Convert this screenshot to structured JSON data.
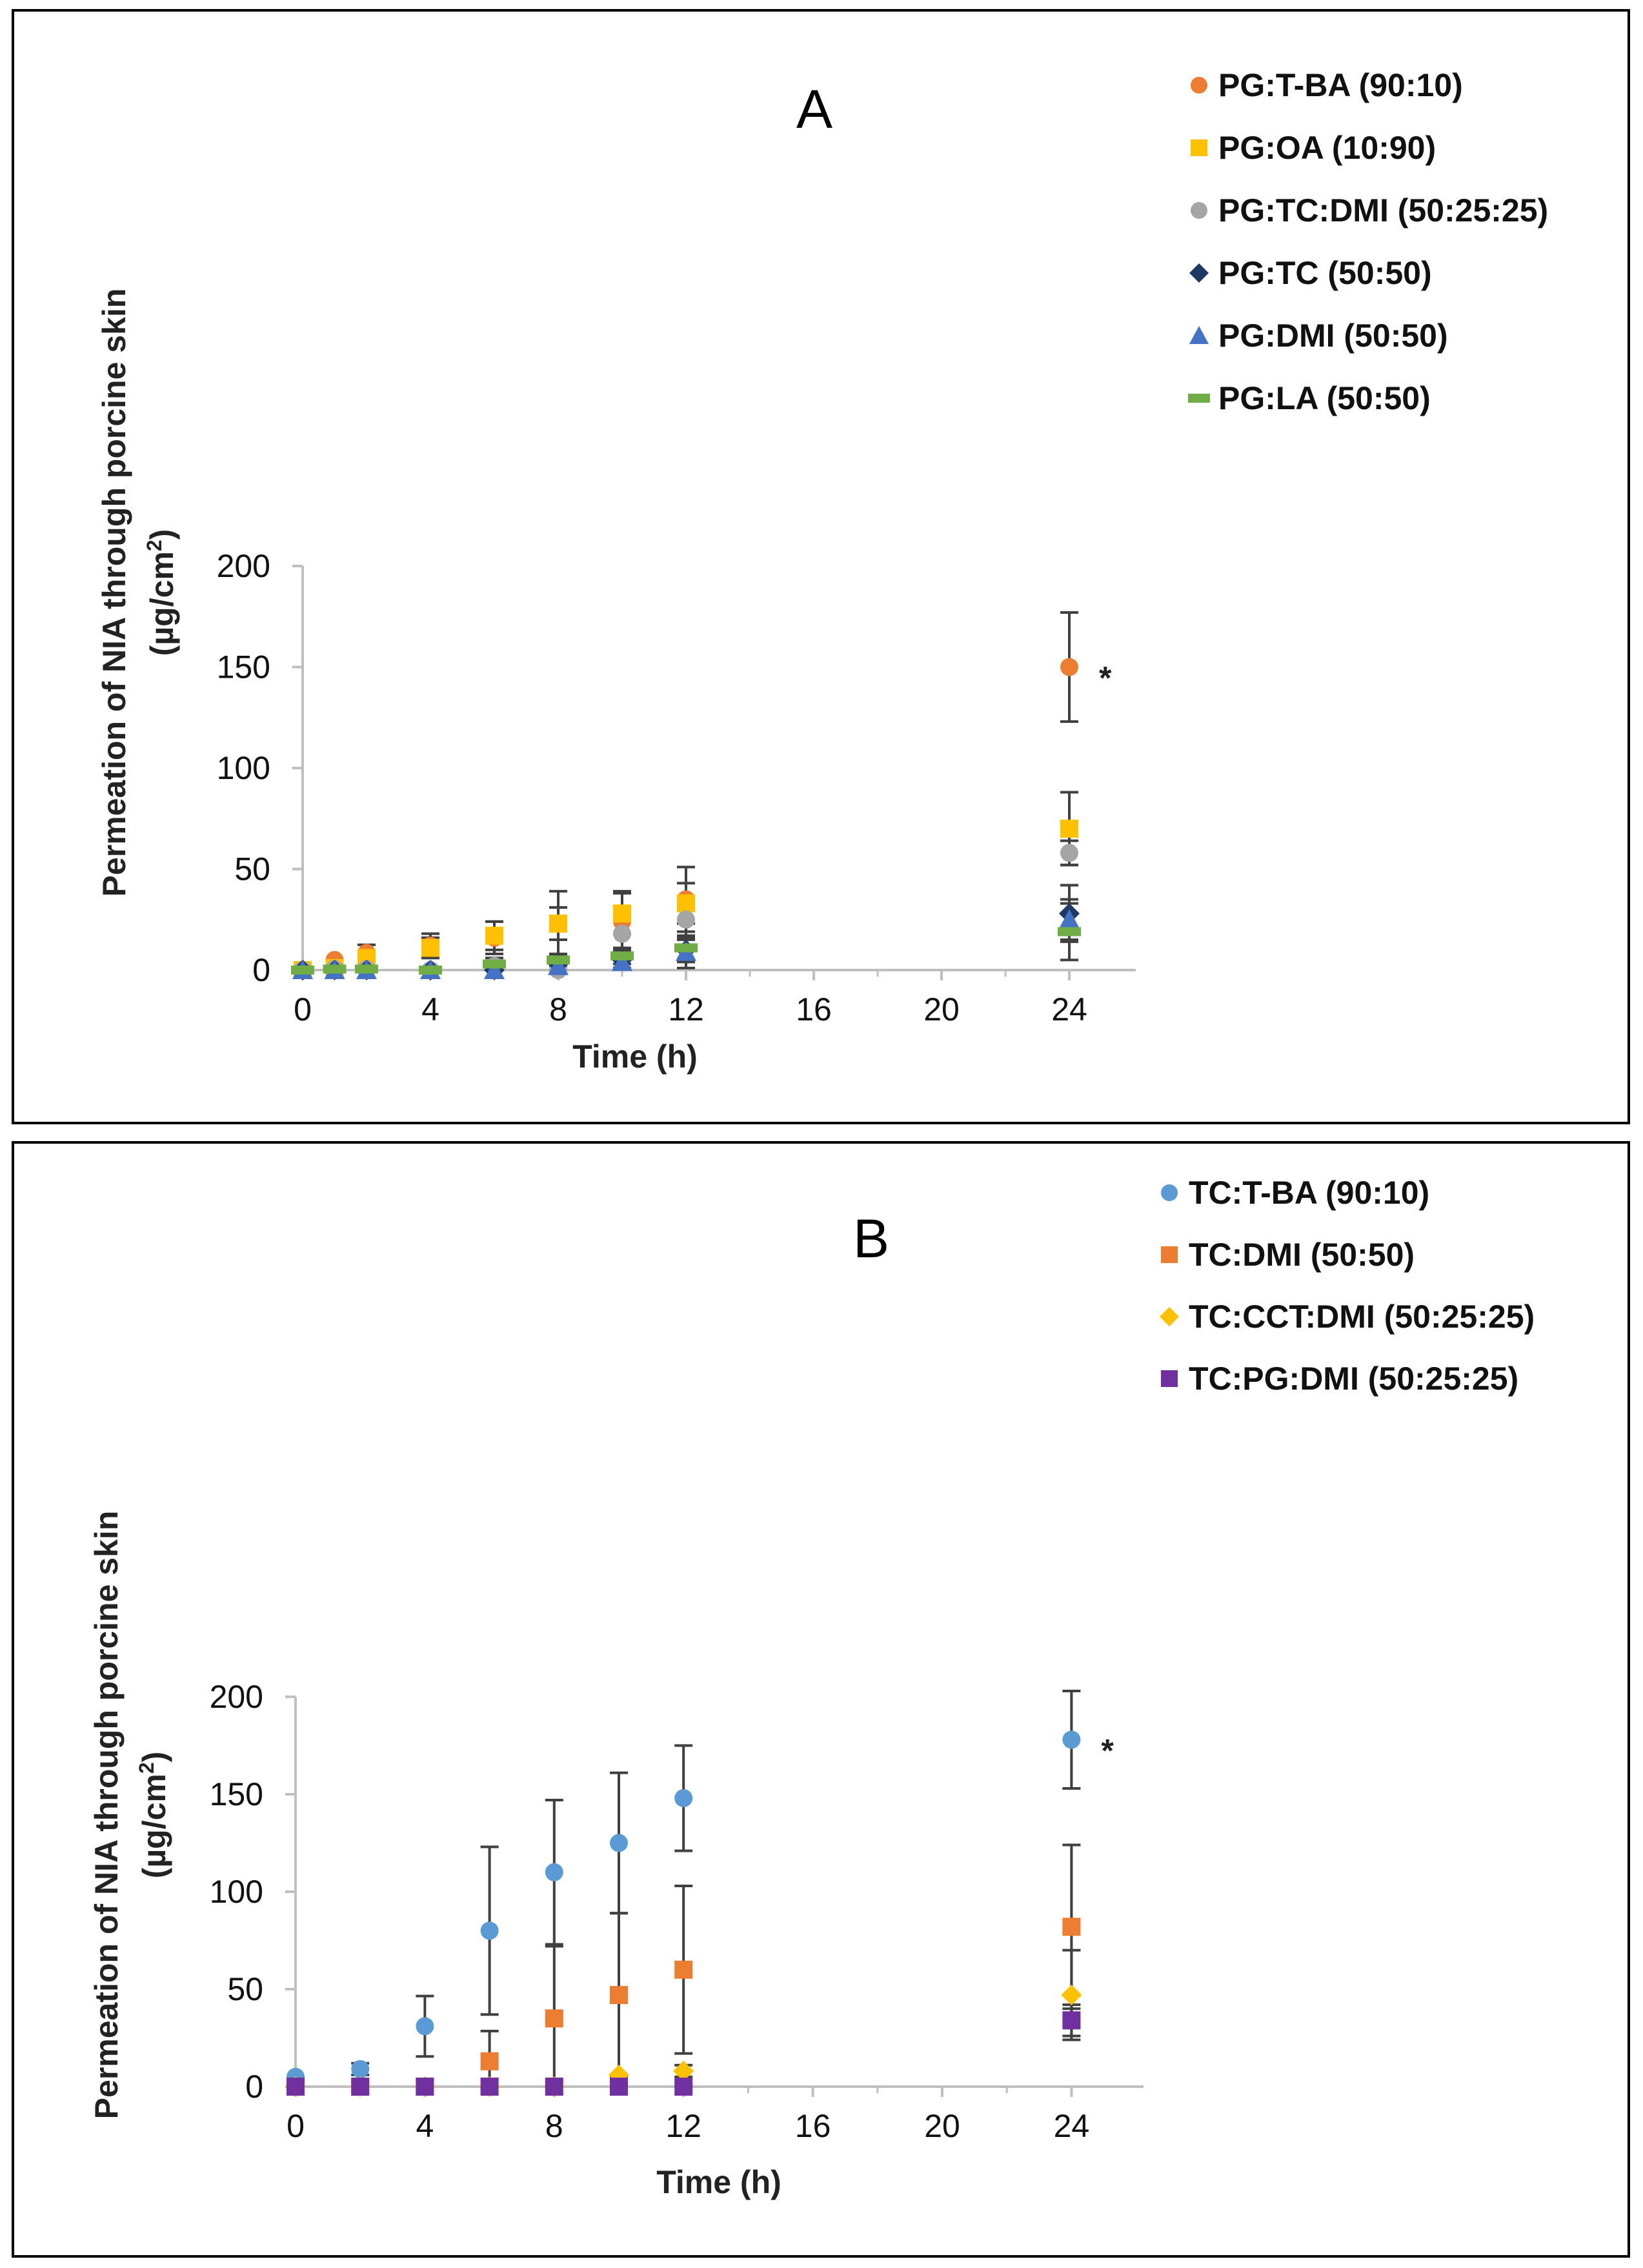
{
  "chart_data": [
    {
      "id": "A",
      "type": "scatter",
      "title": "A",
      "xlabel": "Time (h)",
      "ylabel_line1": "Permeation of NIA through porcine skin",
      "ylabel_unit": "(µg/cm",
      "ylabel_sup": "2",
      "ylabel_close": ")",
      "xlim": [
        0,
        26
      ],
      "ylim": [
        0,
        200
      ],
      "x_ticks": [
        0,
        4,
        8,
        12,
        16,
        20,
        24
      ],
      "y_ticks": [
        0,
        50,
        100,
        150,
        200
      ],
      "legend_position": "top-right",
      "annotation": {
        "text": "*",
        "x": 24,
        "y": 150
      },
      "series": [
        {
          "name": "PG:T-BA (90:10)",
          "marker": "circle",
          "color": "#ED7D31",
          "x": [
            0,
            1,
            2,
            4,
            6,
            8,
            10,
            12,
            24
          ],
          "y": [
            0,
            5,
            8.5,
            12,
            16,
            23,
            24,
            35,
            150
          ],
          "err": [
            0,
            0,
            4,
            6,
            8,
            16,
            15,
            16,
            27
          ]
        },
        {
          "name": "PG:OA (10:90)",
          "marker": "square",
          "color": "#FFC000",
          "x": [
            0,
            1,
            2,
            4,
            6,
            8,
            10,
            12,
            24
          ],
          "y": [
            0,
            1,
            6,
            11,
            17,
            23,
            28,
            33,
            70
          ],
          "err": [
            0,
            0,
            3,
            5,
            7,
            8,
            10,
            10,
            18
          ]
        },
        {
          "name": "PG:TC:DMI (50:25:25)",
          "marker": "circle",
          "color": "#A5A5A5",
          "x": [
            0,
            1,
            2,
            4,
            6,
            8,
            10,
            12,
            24
          ],
          "y": [
            0,
            0.5,
            0.5,
            0,
            2,
            0,
            18,
            25,
            58
          ],
          "err": [
            0,
            0,
            0,
            0,
            0,
            0,
            8,
            10,
            6
          ]
        },
        {
          "name": "PG:TC (50:50)",
          "marker": "diamond",
          "color": "#1F3864",
          "x": [
            0,
            1,
            2,
            4,
            6,
            8,
            10,
            12,
            24
          ],
          "y": [
            0,
            0,
            0,
            0,
            0,
            3,
            5,
            10,
            28
          ],
          "err": [
            0,
            0,
            0,
            0,
            0,
            4,
            4,
            6,
            14
          ]
        },
        {
          "name": "PG:DMI (50:50)",
          "marker": "triangle",
          "color": "#4472C4",
          "x": [
            0,
            1,
            2,
            4,
            6,
            8,
            10,
            12,
            24
          ],
          "y": [
            0,
            0,
            0,
            0,
            0,
            2,
            4,
            9,
            25
          ],
          "err": [
            0,
            0,
            0,
            0,
            0,
            3,
            3,
            8,
            10
          ]
        },
        {
          "name": "PG:LA (50:50)",
          "marker": "dash",
          "color": "#70AD47",
          "x": [
            0,
            1,
            2,
            4,
            6,
            8,
            10,
            12,
            24
          ],
          "y": [
            0,
            0.5,
            0.5,
            0,
            3,
            5,
            7,
            11,
            19
          ],
          "err": [
            0,
            0,
            0,
            0,
            3,
            3,
            4,
            6,
            14
          ]
        }
      ]
    },
    {
      "id": "B",
      "type": "scatter",
      "title": "B",
      "xlabel": "Time (h)",
      "ylabel_line1": "Permeation of NIA through porcine skin",
      "ylabel_unit": "(µg/cm",
      "ylabel_sup": "2",
      "ylabel_close": ")",
      "xlim": [
        0,
        26
      ],
      "ylim": [
        0,
        200
      ],
      "x_ticks": [
        0,
        4,
        8,
        12,
        16,
        20,
        24
      ],
      "y_ticks": [
        0,
        50,
        100,
        150,
        200
      ],
      "legend_position": "top-right",
      "annotation": {
        "text": "*",
        "x": 24,
        "y": 178
      },
      "series": [
        {
          "name": "TC:T-BA (90:10)",
          "marker": "circle",
          "color": "#5B9BD5",
          "x": [
            0,
            2,
            4,
            6,
            8,
            10,
            12,
            24
          ],
          "y": [
            5,
            9,
            31,
            80,
            110,
            125,
            148,
            178
          ],
          "err": [
            0,
            3,
            15.5,
            43,
            37,
            36,
            27,
            25
          ]
        },
        {
          "name": "TC:DMI (50:50)",
          "marker": "square",
          "color": "#ED7D31",
          "x": [
            0,
            2,
            4,
            6,
            8,
            10,
            12,
            24
          ],
          "y": [
            0,
            0,
            0,
            13,
            35,
            47,
            60,
            82
          ],
          "err": [
            0,
            0,
            0,
            15.5,
            37,
            42,
            43,
            42
          ]
        },
        {
          "name": "TC:CCT:DMI (50:25:25)",
          "marker": "diamond",
          "color": "#FFC000",
          "x": [
            0,
            2,
            4,
            6,
            8,
            10,
            12,
            24
          ],
          "y": [
            0,
            0,
            0,
            0,
            0,
            6,
            8,
            47
          ],
          "err": [
            0,
            0,
            0,
            0,
            0,
            0,
            3,
            23
          ]
        },
        {
          "name": "TC:PG:DMI (50:25:25)",
          "marker": "square",
          "color": "#7030A0",
          "x": [
            0,
            2,
            4,
            6,
            8,
            10,
            12,
            24
          ],
          "y": [
            0,
            0,
            0,
            0,
            0,
            0,
            0,
            34
          ],
          "err": [
            0,
            0,
            0,
            0,
            0,
            0,
            0,
            8
          ]
        }
      ]
    }
  ]
}
